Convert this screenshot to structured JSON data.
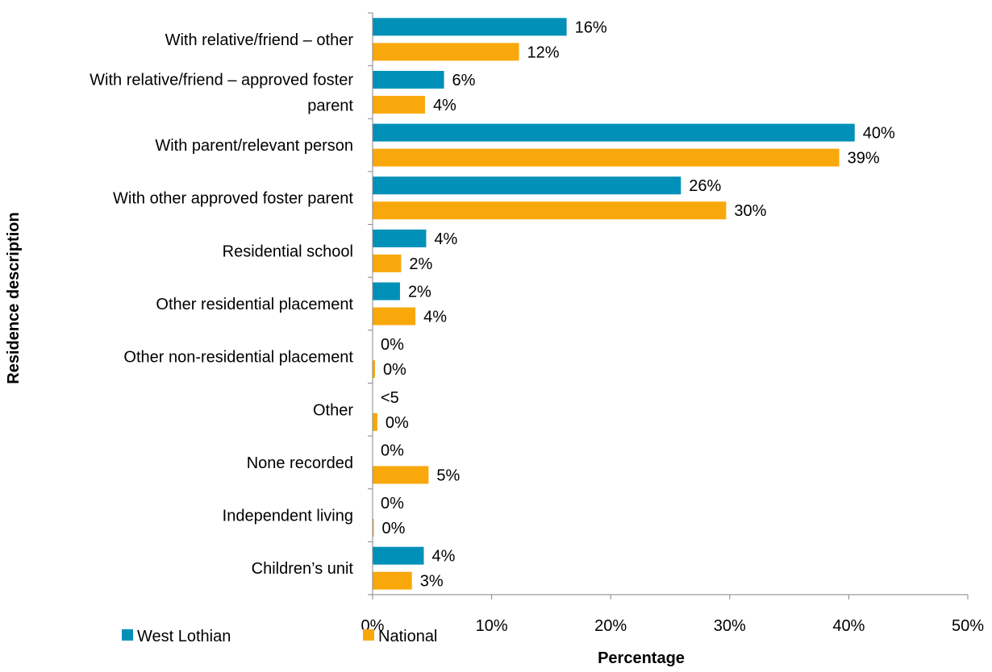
{
  "chart_data": {
    "type": "bar",
    "orientation": "horizontal",
    "categories": [
      [
        "With relative/friend – other"
      ],
      [
        "With relative/friend – approved foster",
        "parent"
      ],
      [
        "With parent/relevant person"
      ],
      [
        "With other approved foster parent"
      ],
      [
        "Residential school"
      ],
      [
        "Other residential placement"
      ],
      [
        "Other non-residential placement"
      ],
      [
        "Other"
      ],
      [
        "None recorded"
      ],
      [
        "Independent living"
      ],
      [
        "Children’s unit"
      ]
    ],
    "series": [
      {
        "name": "West Lothian",
        "color": "#0090B8",
        "values": [
          16.3,
          6.0,
          40.5,
          25.9,
          4.5,
          2.3,
          0,
          0,
          0,
          0,
          4.3
        ],
        "labels": [
          "16%",
          "6%",
          "40%",
          "26%",
          "4%",
          "2%",
          "0%",
          "<5",
          "0%",
          "0%",
          "4%"
        ]
      },
      {
        "name": "National",
        "color": "#F9A80C",
        "values": [
          12.3,
          4.4,
          39.2,
          29.7,
          2.4,
          3.6,
          0.2,
          0.4,
          4.7,
          0.1,
          3.3
        ],
        "labels": [
          "12%",
          "4%",
          "39%",
          "30%",
          "2%",
          "4%",
          "0%",
          "0%",
          "5%",
          "0%",
          "3%"
        ]
      }
    ],
    "xlabel": "Percentage",
    "ylabel": "Residence description",
    "xlim": [
      0,
      50
    ],
    "xticks": [
      0,
      10,
      20,
      30,
      40,
      50
    ],
    "xtick_labels": [
      "0%",
      "10%",
      "20%",
      "30%",
      "40%",
      "50%"
    ],
    "grid": false,
    "legend_position": "bottom-left"
  }
}
